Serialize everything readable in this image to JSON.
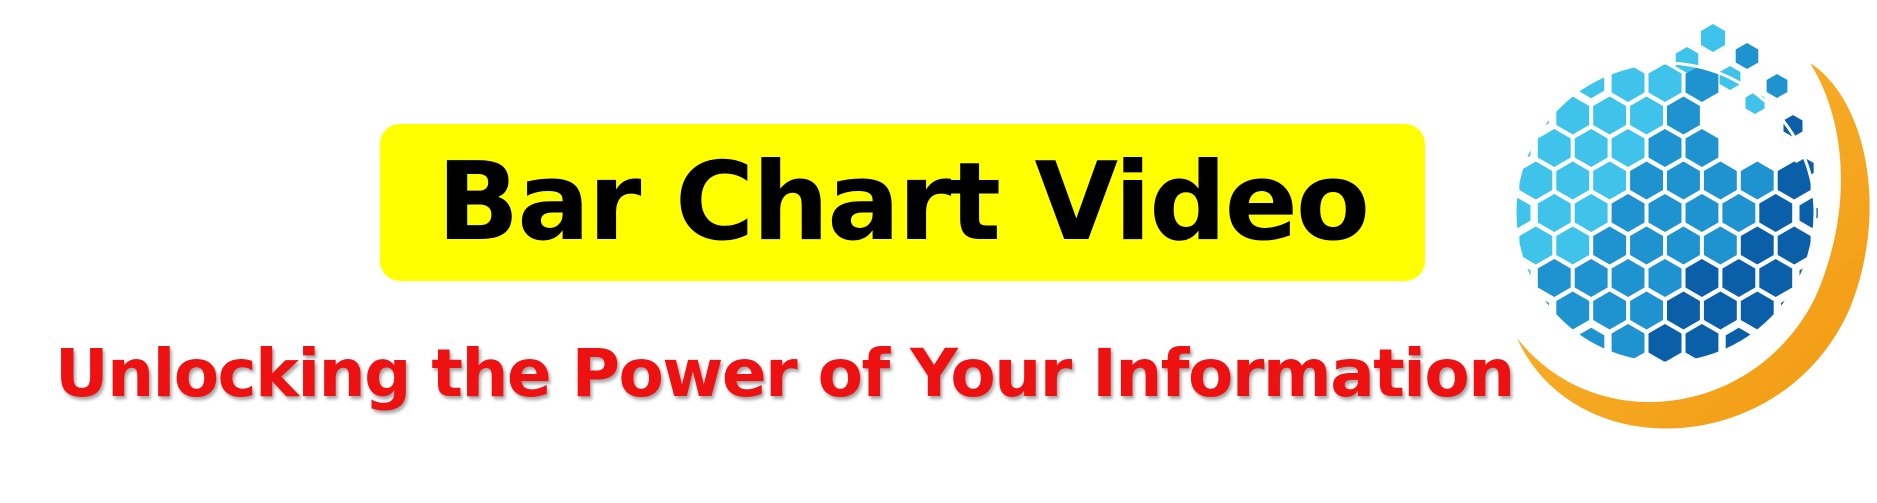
{
  "banner": {
    "title": "Bar Chart Video",
    "subtitle": "Unlocking the Power of Your Information"
  },
  "logo": {
    "icon": "hexagon-globe-icon",
    "colors": {
      "blue_light": "#3fc3ea",
      "blue_mid": "#1f93cf",
      "blue_dark": "#0b5fa8",
      "ring_orange": "#f7a71c",
      "title_bg": "#ffff00",
      "subtitle_red": "#ee1111"
    }
  }
}
